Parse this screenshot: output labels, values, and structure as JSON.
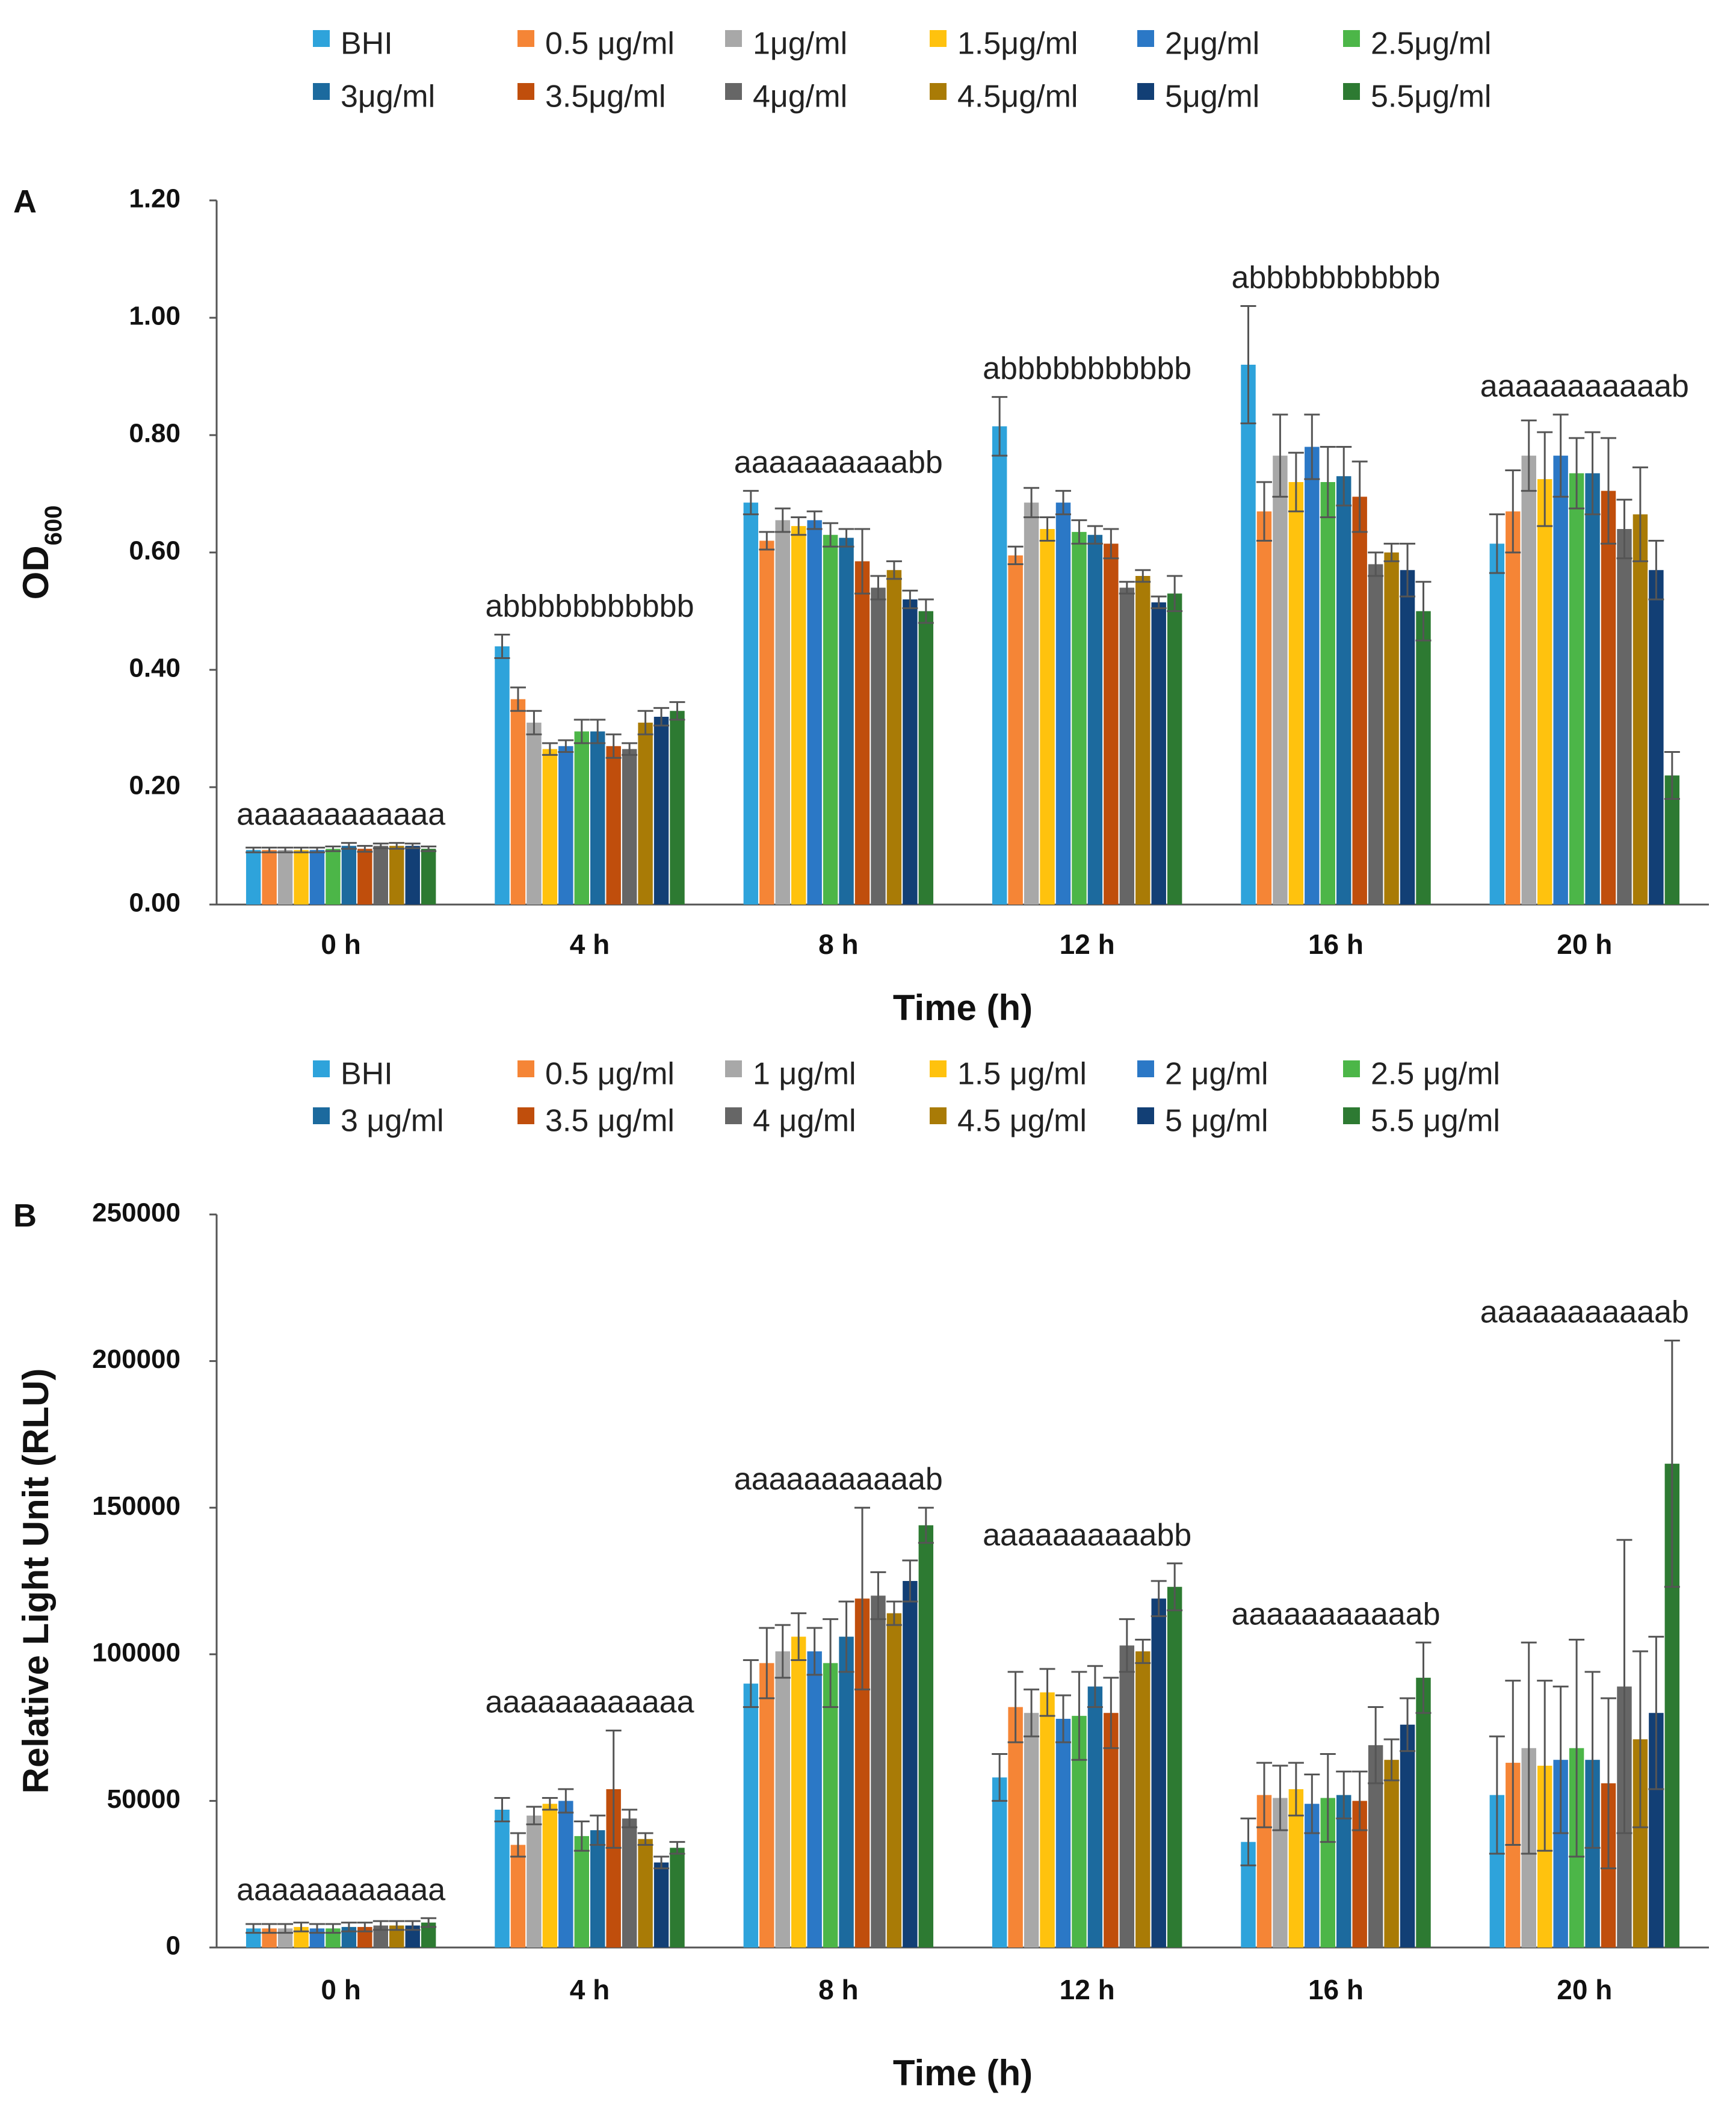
{
  "chart_data": [
    {
      "type": "bar",
      "panel_label": "A",
      "title": "",
      "xlabel": "Time (h)",
      "ylabel": "OD",
      "ylabel_sub": "600",
      "ylim": [
        0,
        1.2
      ],
      "yticks": [
        "0.00",
        "0.20",
        "0.40",
        "0.60",
        "0.80",
        "1.00",
        "1.20"
      ],
      "grid": false,
      "legend_position": "top",
      "categories": [
        "0 h",
        "4 h",
        "8 h",
        "12 h",
        "16 h",
        "20 h"
      ],
      "annotations": [
        "aaaaaaaaaaaa",
        "abbbbbbbbbbb",
        "aaaaaaaaaabb",
        "abbbbbbbbbbb",
        "abbbbbbbbbbb",
        "aaaaaaaaaaab"
      ],
      "series": [
        {
          "name": "BHI",
          "color": "#2EA3DB",
          "values": [
            0.093,
            0.44,
            0.685,
            0.815,
            0.92,
            0.615
          ],
          "errors": [
            0.004,
            0.02,
            0.02,
            0.05,
            0.1,
            0.05
          ]
        },
        {
          "name": "0.5 μg/ml",
          "color": "#F58536",
          "values": [
            0.093,
            0.35,
            0.62,
            0.595,
            0.67,
            0.67
          ],
          "errors": [
            0.004,
            0.02,
            0.015,
            0.015,
            0.05,
            0.07
          ]
        },
        {
          "name": "1μg/ml",
          "color": "#A8A8A8",
          "values": [
            0.093,
            0.31,
            0.655,
            0.685,
            0.765,
            0.765
          ],
          "errors": [
            0.004,
            0.02,
            0.02,
            0.025,
            0.07,
            0.06
          ]
        },
        {
          "name": "1.5μg/ml",
          "color": "#FFC20E",
          "values": [
            0.093,
            0.265,
            0.645,
            0.64,
            0.72,
            0.725
          ],
          "errors": [
            0.004,
            0.01,
            0.015,
            0.02,
            0.05,
            0.08
          ]
        },
        {
          "name": "2μg/ml",
          "color": "#2B78C6",
          "values": [
            0.093,
            0.27,
            0.655,
            0.685,
            0.78,
            0.765
          ],
          "errors": [
            0.004,
            0.01,
            0.015,
            0.02,
            0.055,
            0.07
          ]
        },
        {
          "name": "2.5μg/ml",
          "color": "#4CB648",
          "values": [
            0.095,
            0.295,
            0.63,
            0.635,
            0.72,
            0.735
          ],
          "errors": [
            0.004,
            0.02,
            0.02,
            0.02,
            0.06,
            0.06
          ]
        },
        {
          "name": "3μg/ml",
          "color": "#1C6A9E",
          "values": [
            0.1,
            0.295,
            0.625,
            0.63,
            0.73,
            0.735
          ],
          "errors": [
            0.005,
            0.02,
            0.015,
            0.015,
            0.05,
            0.07
          ]
        },
        {
          "name": "3.5μg/ml",
          "color": "#C04E0C",
          "values": [
            0.095,
            0.27,
            0.585,
            0.615,
            0.695,
            0.705
          ],
          "errors": [
            0.005,
            0.02,
            0.055,
            0.025,
            0.06,
            0.09
          ]
        },
        {
          "name": "4μg/ml",
          "color": "#666666",
          "values": [
            0.1,
            0.265,
            0.54,
            0.54,
            0.58,
            0.64
          ],
          "errors": [
            0.004,
            0.01,
            0.02,
            0.01,
            0.02,
            0.05
          ]
        },
        {
          "name": "4.5μg/ml",
          "color": "#A97B06",
          "values": [
            0.1,
            0.31,
            0.57,
            0.56,
            0.6,
            0.665
          ],
          "errors": [
            0.005,
            0.02,
            0.015,
            0.01,
            0.015,
            0.08
          ]
        },
        {
          "name": "5μg/ml",
          "color": "#123F75",
          "values": [
            0.1,
            0.32,
            0.52,
            0.515,
            0.57,
            0.57
          ],
          "errors": [
            0.004,
            0.015,
            0.015,
            0.01,
            0.045,
            0.05
          ]
        },
        {
          "name": "5.5μg/ml",
          "color": "#2D7A32",
          "values": [
            0.095,
            0.33,
            0.5,
            0.53,
            0.5,
            0.22
          ],
          "errors": [
            0.004,
            0.015,
            0.02,
            0.03,
            0.05,
            0.04
          ]
        }
      ]
    },
    {
      "type": "bar",
      "panel_label": "B",
      "title": "",
      "xlabel": "Time (h)",
      "ylabel": "Relative Light Unit (RLU)",
      "ylim": [
        0,
        250000
      ],
      "yticks": [
        "0",
        "50000",
        "100000",
        "150000",
        "200000",
        "250000"
      ],
      "grid": false,
      "legend_position": "top",
      "categories": [
        "0 h",
        "4 h",
        "8 h",
        "12 h",
        "16 h",
        "20 h"
      ],
      "annotations": [
        "aaaaaaaaaaaa",
        "aaaaaaaaaaaa",
        "aaaaaaaaaaab",
        "aaaaaaaaaabb",
        "aaaaaaaaaaab",
        "aaaaaaaaaaab"
      ],
      "series": [
        {
          "name": "BHI",
          "color": "#2EA3DB",
          "values": [
            6500,
            47000,
            90000,
            58000,
            36000,
            52000
          ],
          "errors": [
            1500,
            4000,
            8000,
            8000,
            8000,
            20000
          ]
        },
        {
          "name": "0.5 μg/ml",
          "color": "#F58536",
          "values": [
            6500,
            35000,
            97000,
            82000,
            52000,
            63000
          ],
          "errors": [
            1500,
            4000,
            12000,
            12000,
            11000,
            28000
          ]
        },
        {
          "name": "1 μg/ml",
          "color": "#A8A8A8",
          "values": [
            6500,
            45000,
            101000,
            80000,
            51000,
            68000
          ],
          "errors": [
            1500,
            3000,
            9000,
            8000,
            11000,
            36000
          ]
        },
        {
          "name": "1.5 μg/ml",
          "color": "#FFC20E",
          "values": [
            7000,
            49000,
            106000,
            87000,
            54000,
            62000
          ],
          "errors": [
            1500,
            2000,
            8000,
            8000,
            9000,
            29000
          ]
        },
        {
          "name": "2 μg/ml",
          "color": "#2B78C6",
          "values": [
            6500,
            50000,
            101000,
            78000,
            49000,
            64000
          ],
          "errors": [
            1500,
            4000,
            8000,
            8000,
            10000,
            25000
          ]
        },
        {
          "name": "2.5 μg/ml",
          "color": "#4CB648",
          "values": [
            6500,
            38000,
            97000,
            79000,
            51000,
            68000
          ],
          "errors": [
            1500,
            5000,
            15000,
            15000,
            15000,
            37000
          ]
        },
        {
          "name": "3 μg/ml",
          "color": "#1C6A9E",
          "values": [
            7000,
            40000,
            106000,
            89000,
            52000,
            64000
          ],
          "errors": [
            1500,
            5000,
            12000,
            7000,
            8000,
            30000
          ]
        },
        {
          "name": "3.5 μg/ml",
          "color": "#C04E0C",
          "values": [
            7000,
            54000,
            119000,
            80000,
            50000,
            56000
          ],
          "errors": [
            1500,
            20000,
            31000,
            12000,
            10000,
            29000
          ]
        },
        {
          "name": "4 μg/ml",
          "color": "#666666",
          "values": [
            7500,
            44000,
            120000,
            103000,
            69000,
            89000
          ],
          "errors": [
            1500,
            3000,
            8000,
            9000,
            13000,
            50000
          ]
        },
        {
          "name": "4.5 μg/ml",
          "color": "#A97B06",
          "values": [
            7500,
            37000,
            114000,
            101000,
            64000,
            71000
          ],
          "errors": [
            1500,
            2000,
            4000,
            4000,
            7000,
            30000
          ]
        },
        {
          "name": "5 μg/ml",
          "color": "#123F75",
          "values": [
            7500,
            29000,
            125000,
            119000,
            76000,
            80000
          ],
          "errors": [
            1500,
            2000,
            7000,
            6000,
            9000,
            26000
          ]
        },
        {
          "name": "5.5 μg/ml",
          "color": "#2D7A32",
          "values": [
            8500,
            34000,
            144000,
            123000,
            92000,
            165000
          ],
          "errors": [
            1500,
            2000,
            6000,
            8000,
            12000,
            42000
          ]
        }
      ]
    }
  ]
}
